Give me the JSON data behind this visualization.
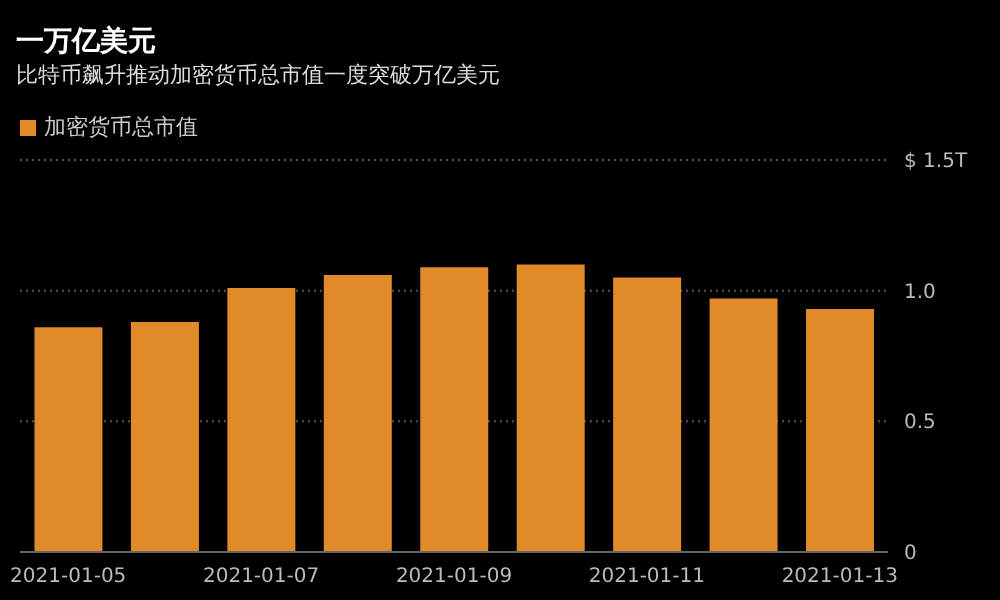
{
  "chart_data": {
    "type": "bar",
    "title": "一万亿美元",
    "subtitle": "比特币飙升推动加密货币总市值一度突破万亿美元",
    "categories": [
      "2021-01-05",
      null,
      "2021-01-07",
      null,
      "2021-01-09",
      null,
      "2021-01-11",
      null,
      "2021-01-13"
    ],
    "series": [
      {
        "name": "加密货币总市值",
        "color": "#e08a2a",
        "values": [
          0.86,
          0.88,
          1.01,
          1.06,
          1.09,
          1.1,
          1.05,
          0.97,
          0.93
        ]
      }
    ],
    "ylim": [
      0,
      1.5
    ],
    "yticks": [
      0,
      0.5,
      {
        "value": 1,
        "label": "1.0"
      },
      {
        "value": 1.5,
        "label": "$ 1.5T"
      }
    ],
    "grid": "y",
    "legend": "top left"
  }
}
